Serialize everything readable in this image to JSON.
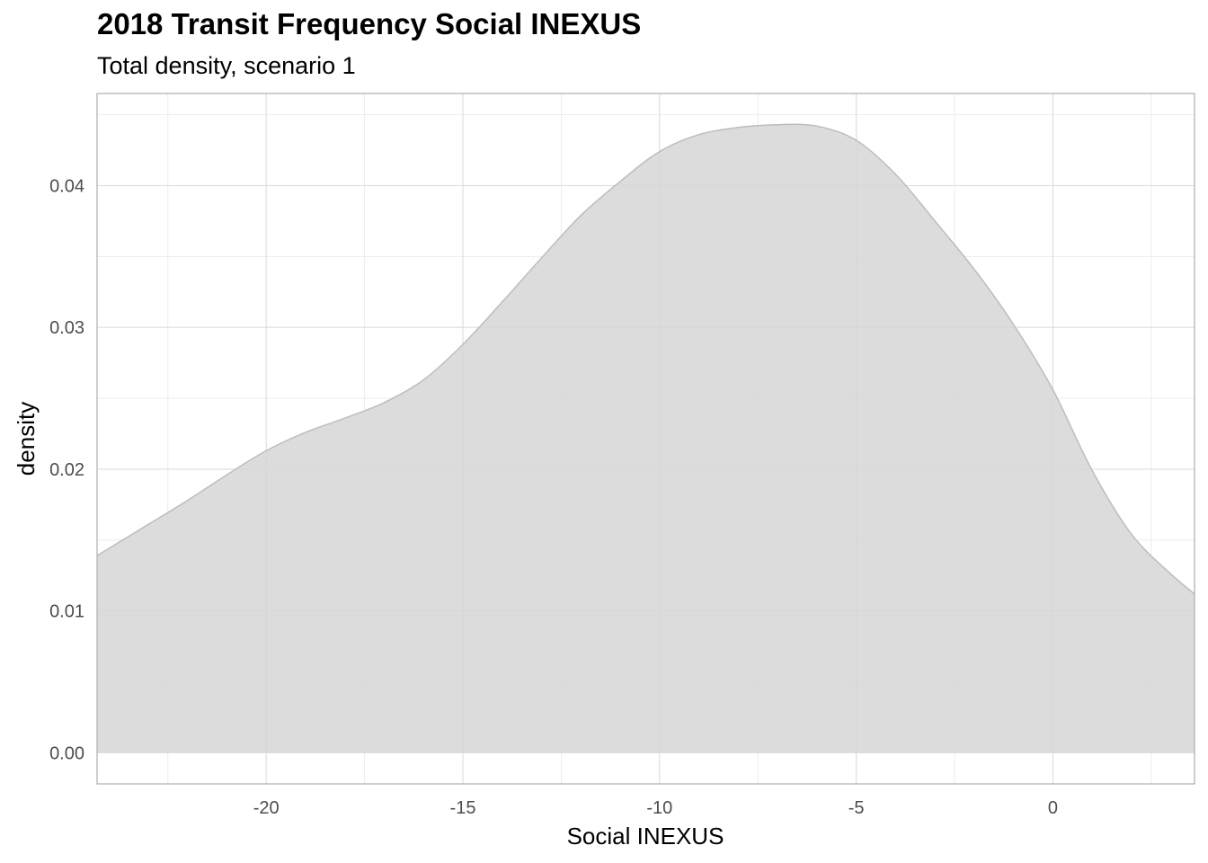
{
  "chart_data": {
    "type": "area",
    "title": "2018 Transit Frequency Social INEXUS",
    "subtitle": "Total density, scenario 1",
    "xlabel": "Social INEXUS",
    "ylabel": "density",
    "xlim": [
      -24.3,
      3.6
    ],
    "ylim": [
      -0.0022,
      0.0465
    ],
    "x_ticks": [
      -20,
      -15,
      -10,
      -5,
      0
    ],
    "x_tick_labels": [
      "-20",
      "-15",
      "-10",
      "-5",
      "0"
    ],
    "y_ticks": [
      0.0,
      0.01,
      0.02,
      0.03,
      0.04
    ],
    "y_tick_labels": [
      "0.00",
      "0.01",
      "0.02",
      "0.03",
      "0.04"
    ],
    "grid": true,
    "legend": "none",
    "fill_color": "#d6d6d6",
    "line_color": "#bdbdbd",
    "series": [
      {
        "x": [
          -24.3,
          -23.0,
          -22.0,
          -21.0,
          -20.0,
          -19.0,
          -18.0,
          -17.0,
          -16.0,
          -15.0,
          -14.0,
          -13.0,
          -12.0,
          -11.0,
          -10.0,
          -9.0,
          -8.0,
          -7.0,
          -6.0,
          -5.0,
          -4.0,
          -3.0,
          -2.0,
          -1.0,
          0.0,
          1.0,
          2.0,
          3.0,
          3.6
        ],
        "y": [
          0.0139,
          0.0161,
          0.0178,
          0.0196,
          0.0213,
          0.0226,
          0.0236,
          0.0247,
          0.0263,
          0.0288,
          0.0318,
          0.0349,
          0.0379,
          0.0403,
          0.0424,
          0.0436,
          0.0441,
          0.0443,
          0.0442,
          0.0432,
          0.0408,
          0.0375,
          0.0341,
          0.0302,
          0.0256,
          0.0199,
          0.0154,
          0.0126,
          0.0112
        ]
      }
    ]
  }
}
